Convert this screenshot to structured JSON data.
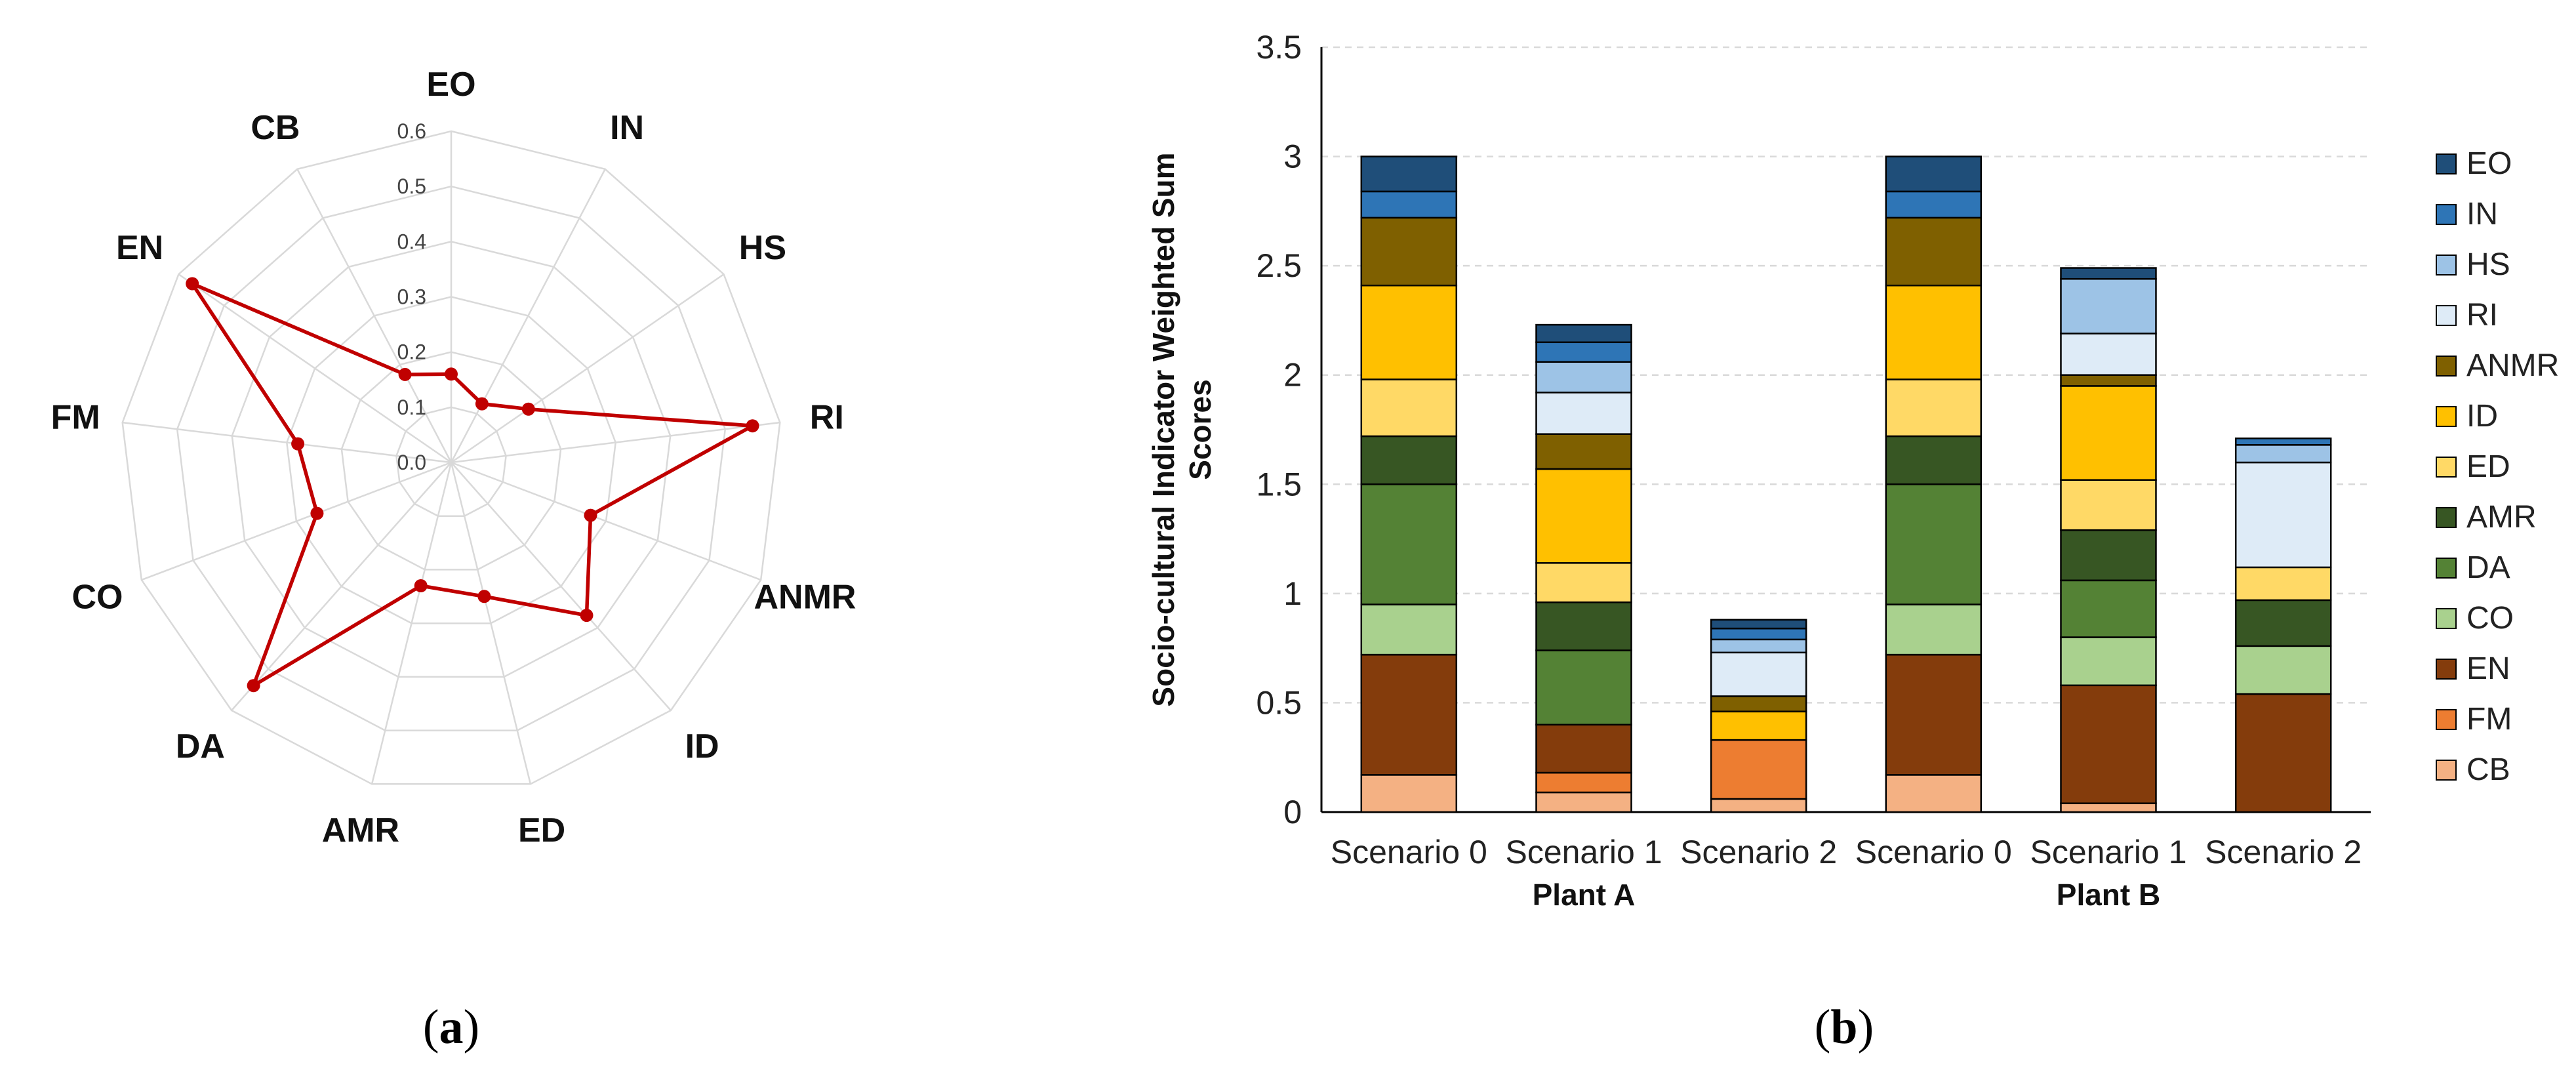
{
  "panel_labels": {
    "a": {
      "open": "(",
      "letter": "a",
      "close": ")"
    },
    "b": {
      "open": "(",
      "letter": "b",
      "close": ")"
    }
  },
  "colors": {
    "radar_line": "#C00000",
    "grid": "#D9D9D9",
    "bar_outline": "#000000",
    "EO": "#1F4E79",
    "IN": "#2E75B6",
    "HS": "#9DC3E6",
    "RI": "#DEEBF7",
    "ANMR": "#7F6000",
    "ID": "#FFC000",
    "ED": "#FFD966",
    "AMR": "#375623",
    "DA": "#548235",
    "CO": "#A9D18E",
    "EN": "#843C0C",
    "FM": "#ED7D31",
    "CB": "#F4B183"
  },
  "chart_data": [
    {
      "type": "radar",
      "panel": "a",
      "title": "",
      "categories": [
        "EO",
        "IN",
        "HS",
        "RI",
        "ANMR",
        "ID",
        "ED",
        "AMR",
        "DA",
        "CO",
        "FM",
        "EN",
        "CB"
      ],
      "values": [
        0.16,
        0.12,
        0.17,
        0.55,
        0.27,
        0.37,
        0.25,
        0.23,
        0.54,
        0.26,
        0.28,
        0.57,
        0.18
      ],
      "rlim": [
        0,
        0.6
      ],
      "rticks": [
        "0.0",
        "0.1",
        "0.2",
        "0.3",
        "0.4",
        "0.5",
        "0.6"
      ],
      "grid": true
    },
    {
      "type": "bar",
      "stacked": true,
      "panel": "b",
      "title": "",
      "xlabel": "",
      "ylabel_lines": [
        "Socio-cultural Indicator Weighted Sum",
        "Scores"
      ],
      "ylim": [
        0,
        3.5
      ],
      "yticks": [
        "0",
        "0.5",
        "1",
        "1.5",
        "2",
        "2.5",
        "3",
        "3.5"
      ],
      "categories": [
        "Scenario 0",
        "Scenario 1",
        "Scenario 2",
        "Scenario 0",
        "Scenario 1",
        "Scenario 2"
      ],
      "groups": [
        {
          "label": "Plant A",
          "start": 0,
          "end": 2
        },
        {
          "label": "Plant B",
          "start": 3,
          "end": 5
        }
      ],
      "legend_position": "right",
      "series": [
        {
          "name": "CB",
          "values": [
            0.17,
            0.09,
            0.06,
            0.17,
            0.04,
            0.0
          ]
        },
        {
          "name": "FM",
          "values": [
            0.0,
            0.09,
            0.27,
            0.0,
            0.0,
            0.0
          ]
        },
        {
          "name": "EN",
          "values": [
            0.55,
            0.22,
            0.0,
            0.55,
            0.54,
            0.54
          ]
        },
        {
          "name": "CO",
          "values": [
            0.23,
            0.0,
            0.0,
            0.23,
            0.22,
            0.22
          ]
        },
        {
          "name": "DA",
          "values": [
            0.55,
            0.34,
            0.0,
            0.55,
            0.26,
            0.0
          ]
        },
        {
          "name": "AMR",
          "values": [
            0.22,
            0.22,
            0.0,
            0.22,
            0.23,
            0.21
          ]
        },
        {
          "name": "ED",
          "values": [
            0.26,
            0.18,
            0.0,
            0.26,
            0.23,
            0.15
          ]
        },
        {
          "name": "ID",
          "values": [
            0.43,
            0.43,
            0.13,
            0.43,
            0.43,
            0.0
          ]
        },
        {
          "name": "ANMR",
          "values": [
            0.31,
            0.16,
            0.07,
            0.31,
            0.05,
            0.0
          ]
        },
        {
          "name": "RI",
          "values": [
            0.0,
            0.19,
            0.2,
            0.0,
            0.19,
            0.48
          ]
        },
        {
          "name": "HS",
          "values": [
            0.0,
            0.14,
            0.06,
            0.0,
            0.25,
            0.08
          ]
        },
        {
          "name": "IN",
          "values": [
            0.12,
            0.09,
            0.05,
            0.12,
            0.0,
            0.03
          ]
        },
        {
          "name": "EO",
          "values": [
            0.16,
            0.08,
            0.04,
            0.16,
            0.05,
            0.0
          ]
        }
      ]
    }
  ]
}
